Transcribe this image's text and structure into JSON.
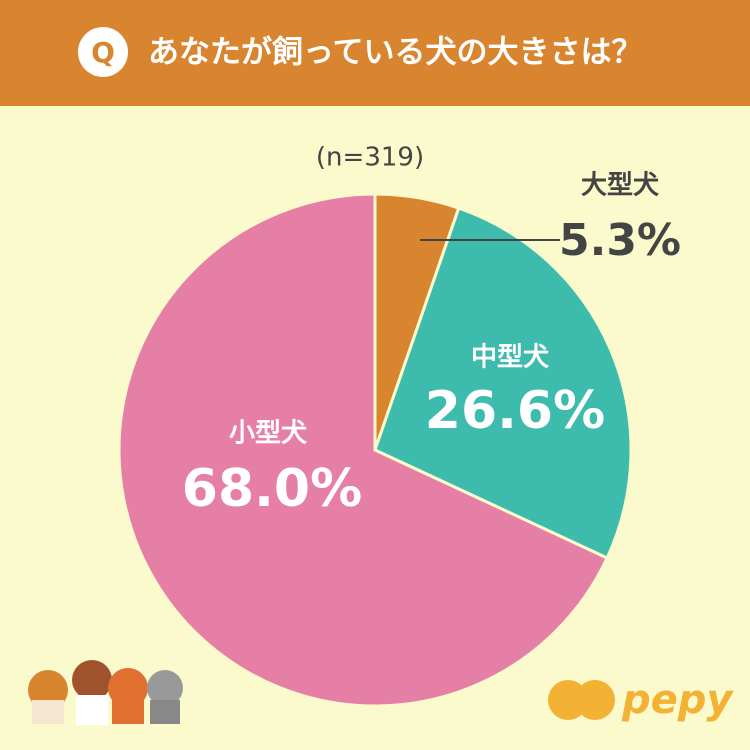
{
  "chart_data": {
    "type": "pie",
    "badge": "Q",
    "title": "あなたが飼っている犬の大きさは？",
    "subtitle": "(n=319)",
    "categories": [
      "大型犬",
      "中型犬",
      "小型犬"
    ],
    "values": [
      5.3,
      26.6,
      68.0
    ],
    "value_labels": [
      "5.3%",
      "26.6%",
      "68.0%"
    ],
    "colors": [
      "#d9842f",
      "#3dbbac",
      "#e57fa6"
    ],
    "logo": "pepy"
  }
}
